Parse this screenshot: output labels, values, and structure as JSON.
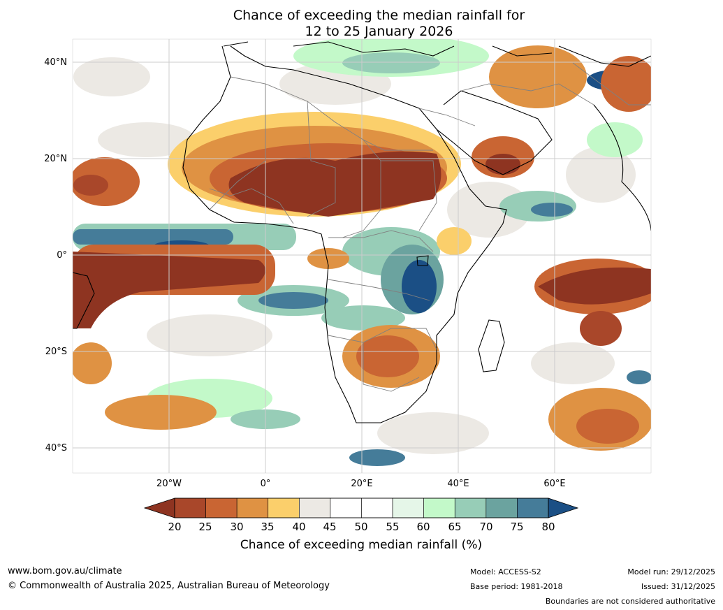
{
  "title": {
    "line1": "Chance of exceeding the median rainfall for",
    "line2": "12 to 25 January 2026"
  },
  "map": {
    "lat_labels": [
      "40°N",
      "20°N",
      "0°",
      "20°S",
      "40°S"
    ],
    "lon_labels": [
      "20°W",
      "0°",
      "20°E",
      "40°E",
      "60°E"
    ],
    "colors": {
      "c_below20": "#8e3421",
      "c20_25": "#a9472a",
      "c25_30": "#c96533",
      "c30_35": "#df9243",
      "c35_40": "#fbcf6b",
      "c40_45": "#ece9e4",
      "c45_55": "#ffffff",
      "c55_60": "#e5f6e8",
      "c60_65": "#c3f9c9",
      "c65_70": "#97cdb7",
      "c70_75": "#6ba39f",
      "c75_80": "#457c99",
      "c_above80": "#1b4f85",
      "border": "#808080",
      "coast": "#000000",
      "grid": "#cccccc"
    }
  },
  "colorbar": {
    "ticks": [
      "20",
      "25",
      "30",
      "35",
      "40",
      "45",
      "50",
      "55",
      "60",
      "65",
      "70",
      "75",
      "80"
    ],
    "label": "Chance of exceeding median rainfall (%)",
    "colors": [
      "#a9472a",
      "#c96533",
      "#df9243",
      "#fbcf6b",
      "#ece9e4",
      "#ffffff",
      "#ffffff",
      "#e5f6e8",
      "#c3f9c9",
      "#97cdb7",
      "#6ba39f",
      "#457c99"
    ],
    "low_color": "#8e3421",
    "high_color": "#1b4f85"
  },
  "footer": {
    "website": "www.bom.gov.au/climate",
    "copyright": "© Commonwealth of Australia 2025, Australian Bureau of Meteorology",
    "model": "Model: ACCESS-S2",
    "base_period": "Base period: 1981-2018",
    "model_run": "Model run: 29/12/2025",
    "issued": "Issued: 31/12/2025",
    "disclaimer": "Boundaries are not considered authoritative"
  }
}
